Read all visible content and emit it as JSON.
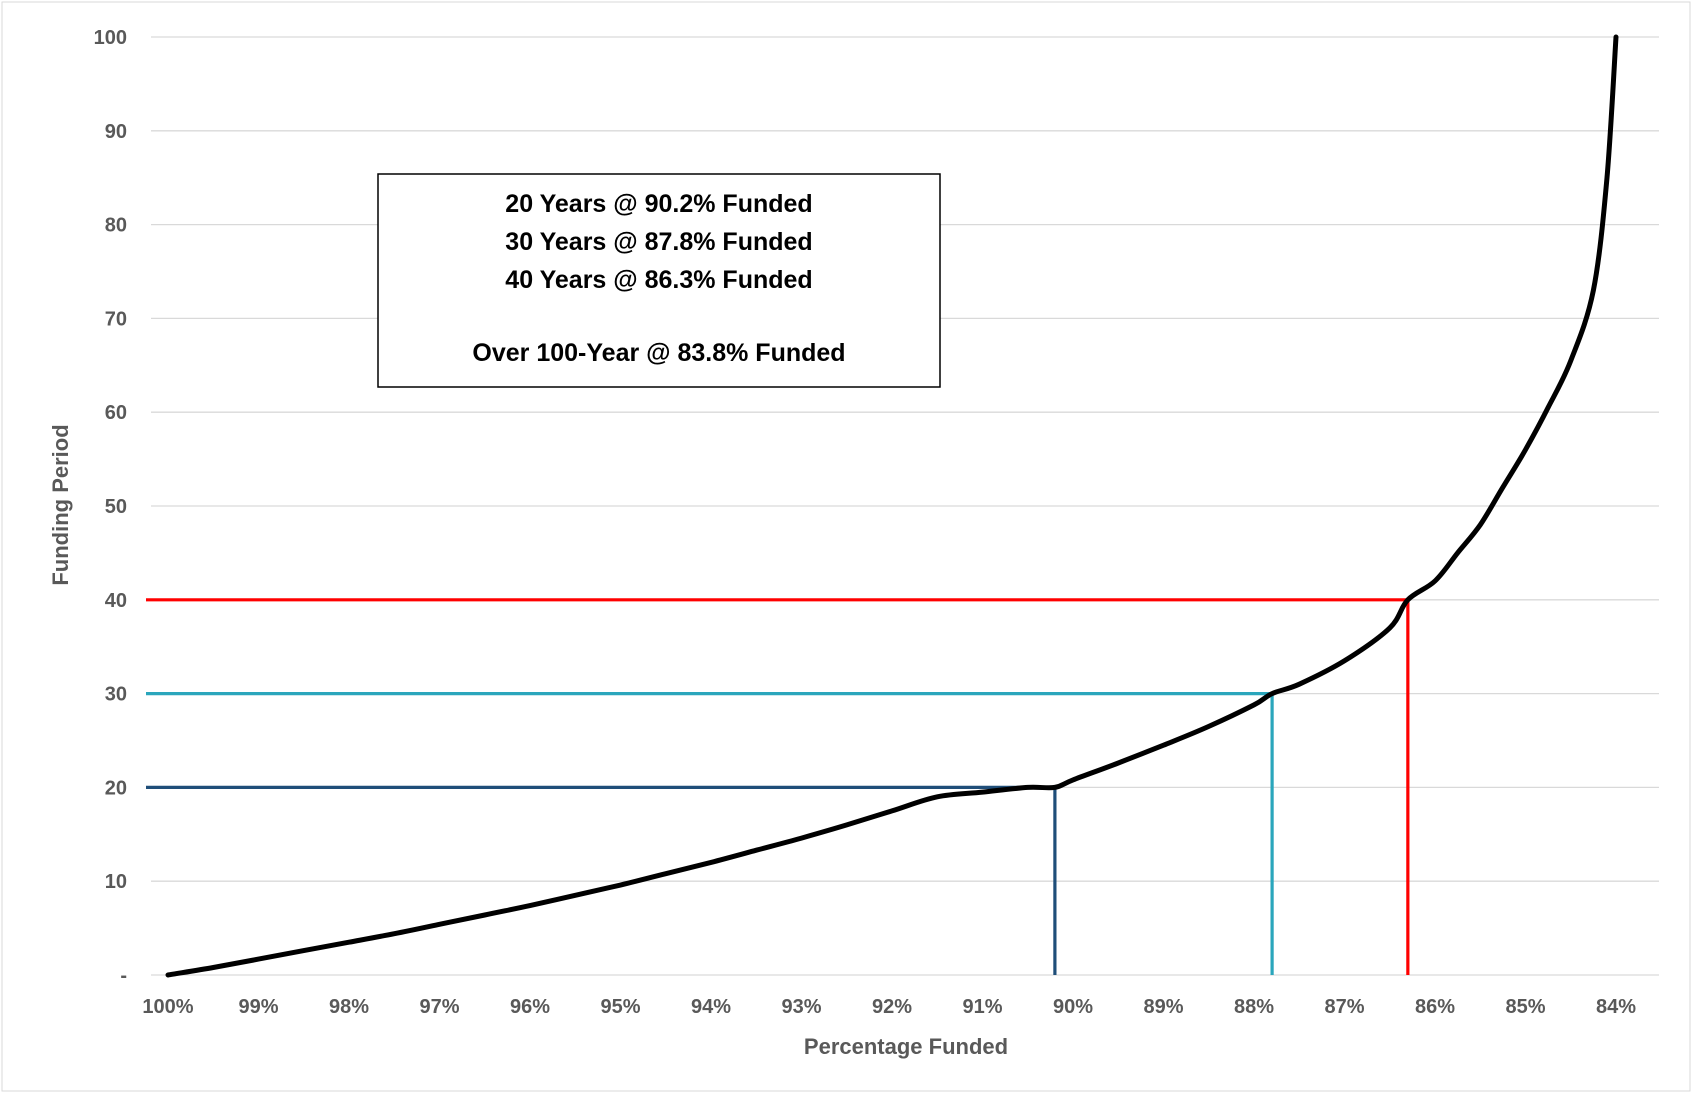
{
  "chart_data": {
    "type": "line",
    "xlabel": "Percentage Funded",
    "ylabel": "Funding Period",
    "xlim": [
      100,
      83.6
    ],
    "ylim": [
      0,
      100
    ],
    "x_reversed": true,
    "x_ticks": [
      {
        "value": 100,
        "label": "100%"
      },
      {
        "value": 99,
        "label": "99%"
      },
      {
        "value": 98,
        "label": "98%"
      },
      {
        "value": 97,
        "label": "97%"
      },
      {
        "value": 96,
        "label": "96%"
      },
      {
        "value": 95,
        "label": "95%"
      },
      {
        "value": 94,
        "label": "94%"
      },
      {
        "value": 93,
        "label": "93%"
      },
      {
        "value": 92,
        "label": "92%"
      },
      {
        "value": 91,
        "label": "91%"
      },
      {
        "value": 90,
        "label": "90%"
      },
      {
        "value": 89,
        "label": "89%"
      },
      {
        "value": 88,
        "label": "88%"
      },
      {
        "value": 87,
        "label": "87%"
      },
      {
        "value": 86,
        "label": "86%"
      },
      {
        "value": 85,
        "label": "85%"
      },
      {
        "value": 84,
        "label": "84%"
      }
    ],
    "y_ticks": [
      {
        "value": 0,
        "label": "-"
      },
      {
        "value": 10,
        "label": "10"
      },
      {
        "value": 20,
        "label": "20"
      },
      {
        "value": 30,
        "label": "30"
      },
      {
        "value": 40,
        "label": "40"
      },
      {
        "value": 50,
        "label": "50"
      },
      {
        "value": 60,
        "label": "60"
      },
      {
        "value": 70,
        "label": "70"
      },
      {
        "value": 80,
        "label": "80"
      },
      {
        "value": 90,
        "label": "90"
      },
      {
        "value": 100,
        "label": "100"
      }
    ],
    "grid": true,
    "legend": "none",
    "series": [
      {
        "color": "#000000",
        "x": [
          100,
          99.5,
          99,
          98.5,
          98,
          97.5,
          97,
          96.5,
          96,
          95.5,
          95,
          94.5,
          94,
          93.5,
          93,
          92.5,
          92,
          91.5,
          91,
          90.5,
          90.2,
          90,
          89.5,
          89,
          88.5,
          88,
          87.8,
          87.5,
          87,
          86.5,
          86.3,
          86,
          85.75,
          85.5,
          85.25,
          85,
          84.75,
          84.5,
          84.25,
          84.1,
          84
        ],
        "y": [
          0,
          0.8,
          1.7,
          2.6,
          3.5,
          4.4,
          5.4,
          6.4,
          7.4,
          8.5,
          9.6,
          10.8,
          12.0,
          13.3,
          14.6,
          16.0,
          17.5,
          19.0,
          19.5,
          20.0,
          20.0,
          20.8,
          22.6,
          24.5,
          26.5,
          28.8,
          30.0,
          31.0,
          33.5,
          37.0,
          40.0,
          42.0,
          45.0,
          48.0,
          52.0,
          56.0,
          60.5,
          65.5,
          73.0,
          85.0,
          100.0
        ]
      }
    ],
    "reference_lines": [
      {
        "y": 20,
        "x": 90.2,
        "color": "#1f4e79"
      },
      {
        "y": 30,
        "x": 87.8,
        "color": "#2aa6bc"
      },
      {
        "y": 40,
        "x": 86.3,
        "color": "#ff0000"
      }
    ],
    "annotation": {
      "lines": [
        "20 Years @ 90.2% Funded",
        "30 Years @ 87.8% Funded",
        "40 Years @ 86.3% Funded",
        "",
        "Over 100-Year @ 83.8% Funded"
      ]
    }
  }
}
